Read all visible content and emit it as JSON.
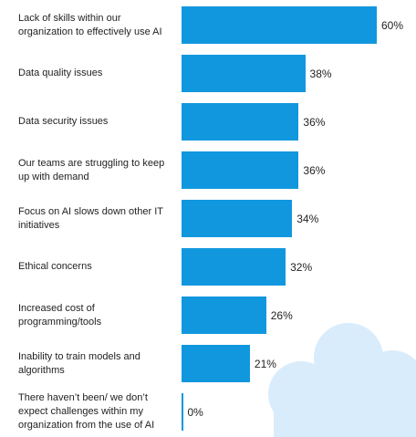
{
  "chart_data": {
    "type": "bar",
    "orientation": "horizontal",
    "title": "",
    "xlabel": "",
    "ylabel": "",
    "xlim": [
      0,
      60
    ],
    "grid": false,
    "legend": "none",
    "categories": [
      "Lack of skills within our organization to effectively use AI",
      "Data quality issues",
      "Data security issues",
      "Our teams are struggling to keep up with demand",
      "Focus on AI slows down other IT initiatives",
      "Ethical concerns",
      "Increased cost of programming/tools",
      "Inability to train models and algorithms",
      "There haven’t been/ we don’t expect challenges within my organization from the use of AI"
    ],
    "values": [
      60,
      38,
      36,
      36,
      34,
      32,
      26,
      21,
      0
    ],
    "value_labels": [
      "60%",
      "38%",
      "36%",
      "36%",
      "34%",
      "32%",
      "26%",
      "21%",
      "0%"
    ],
    "bar_color": "#1197de",
    "background_decoration_color": "#d9ecfb"
  }
}
